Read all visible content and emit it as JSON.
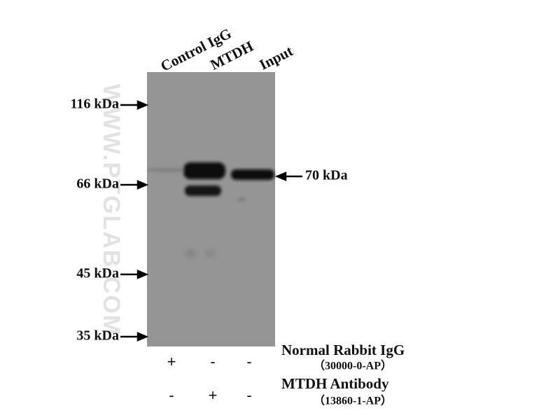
{
  "lanes": [
    "Control IgG",
    "MTDH",
    "Input"
  ],
  "markers": [
    "116 kDa",
    "66 kDa",
    "45 kDa",
    "35 kDa"
  ],
  "band_label": "70 kDa",
  "watermark": "WWW.PTGLAB.COM",
  "treatments": [
    {
      "name": "Normal Rabbit IgG",
      "catalog": "（30000-0-AP）",
      "signs": [
        "+",
        "-",
        "-"
      ]
    },
    {
      "name": "MTDH Antibody",
      "catalog": "（13860-1-AP）",
      "signs": [
        "-",
        "+",
        "-"
      ]
    }
  ]
}
